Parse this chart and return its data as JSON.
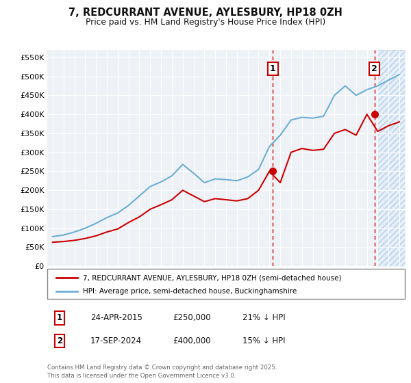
{
  "title": "7, REDCURRANT AVENUE, AYLESBURY, HP18 0ZH",
  "subtitle": "Price paid vs. HM Land Registry's House Price Index (HPI)",
  "ylim": [
    0,
    570000
  ],
  "xlim": [
    1994.5,
    2027.5
  ],
  "yticks": [
    0,
    50000,
    100000,
    150000,
    200000,
    250000,
    300000,
    350000,
    400000,
    450000,
    500000,
    550000
  ],
  "ytick_labels": [
    "£0",
    "£50K",
    "£100K",
    "£150K",
    "£200K",
    "£250K",
    "£300K",
    "£350K",
    "£400K",
    "£450K",
    "£500K",
    "£550K"
  ],
  "xticks": [
    1995,
    1996,
    1997,
    1998,
    1999,
    2000,
    2001,
    2002,
    2003,
    2004,
    2005,
    2006,
    2007,
    2008,
    2009,
    2010,
    2011,
    2012,
    2013,
    2014,
    2015,
    2016,
    2017,
    2018,
    2019,
    2020,
    2021,
    2022,
    2023,
    2024,
    2025,
    2026,
    2027
  ],
  "sale1_x": 2015.31,
  "sale1_y": 250000,
  "sale1_label": "1",
  "sale2_x": 2024.71,
  "sale2_y": 400000,
  "sale2_label": "2",
  "sale_color": "#cc0000",
  "hpi_color": "#6baed6",
  "dashed_line_color": "#cc0000",
  "legend_label_red": "7, REDCURRANT AVENUE, AYLESBURY, HP18 0ZH (semi-detached house)",
  "legend_label_blue": "HPI: Average price, semi-detached house, Buckinghamshire",
  "annotation1_date": "24-APR-2015",
  "annotation1_price": "£250,000",
  "annotation1_hpi": "21% ↓ HPI",
  "annotation2_date": "17-SEP-2024",
  "annotation2_price": "£400,000",
  "annotation2_hpi": "15% ↓ HPI",
  "footer": "Contains HM Land Registry data © Crown copyright and database right 2025.\nThis data is licensed under the Open Government Licence v3.0.",
  "background_color": "#ffffff",
  "plot_bg_color": "#eef2f7",
  "grid_color": "#ffffff",
  "hpi_years": [
    1995,
    1996,
    1997,
    1998,
    1999,
    2000,
    2001,
    2002,
    2003,
    2004,
    2005,
    2006,
    2007,
    2008,
    2009,
    2010,
    2011,
    2012,
    2013,
    2014,
    2015,
    2016,
    2017,
    2018,
    2019,
    2020,
    2021,
    2022,
    2023,
    2024,
    2025,
    2026,
    2027
  ],
  "hpi_values": [
    78000,
    82000,
    90000,
    100000,
    113000,
    128000,
    140000,
    160000,
    185000,
    210000,
    222000,
    238000,
    268000,
    245000,
    220000,
    230000,
    228000,
    225000,
    235000,
    255000,
    315000,
    345000,
    385000,
    392000,
    390000,
    395000,
    450000,
    475000,
    450000,
    465000,
    475000,
    490000,
    505000
  ],
  "red_years": [
    1995,
    1996,
    1997,
    1998,
    1999,
    2000,
    2001,
    2002,
    2003,
    2004,
    2005,
    2006,
    2007,
    2008,
    2009,
    2010,
    2011,
    2012,
    2013,
    2014,
    2015,
    2016,
    2017,
    2018,
    2019,
    2020,
    2021,
    2022,
    2023,
    2024,
    2025,
    2026,
    2027
  ],
  "red_values": [
    63000,
    65000,
    68000,
    73000,
    80000,
    90000,
    98000,
    115000,
    130000,
    150000,
    162000,
    175000,
    200000,
    185000,
    170000,
    178000,
    175000,
    172000,
    178000,
    200000,
    250000,
    220000,
    300000,
    310000,
    305000,
    308000,
    350000,
    360000,
    345000,
    400000,
    355000,
    370000,
    380000
  ]
}
